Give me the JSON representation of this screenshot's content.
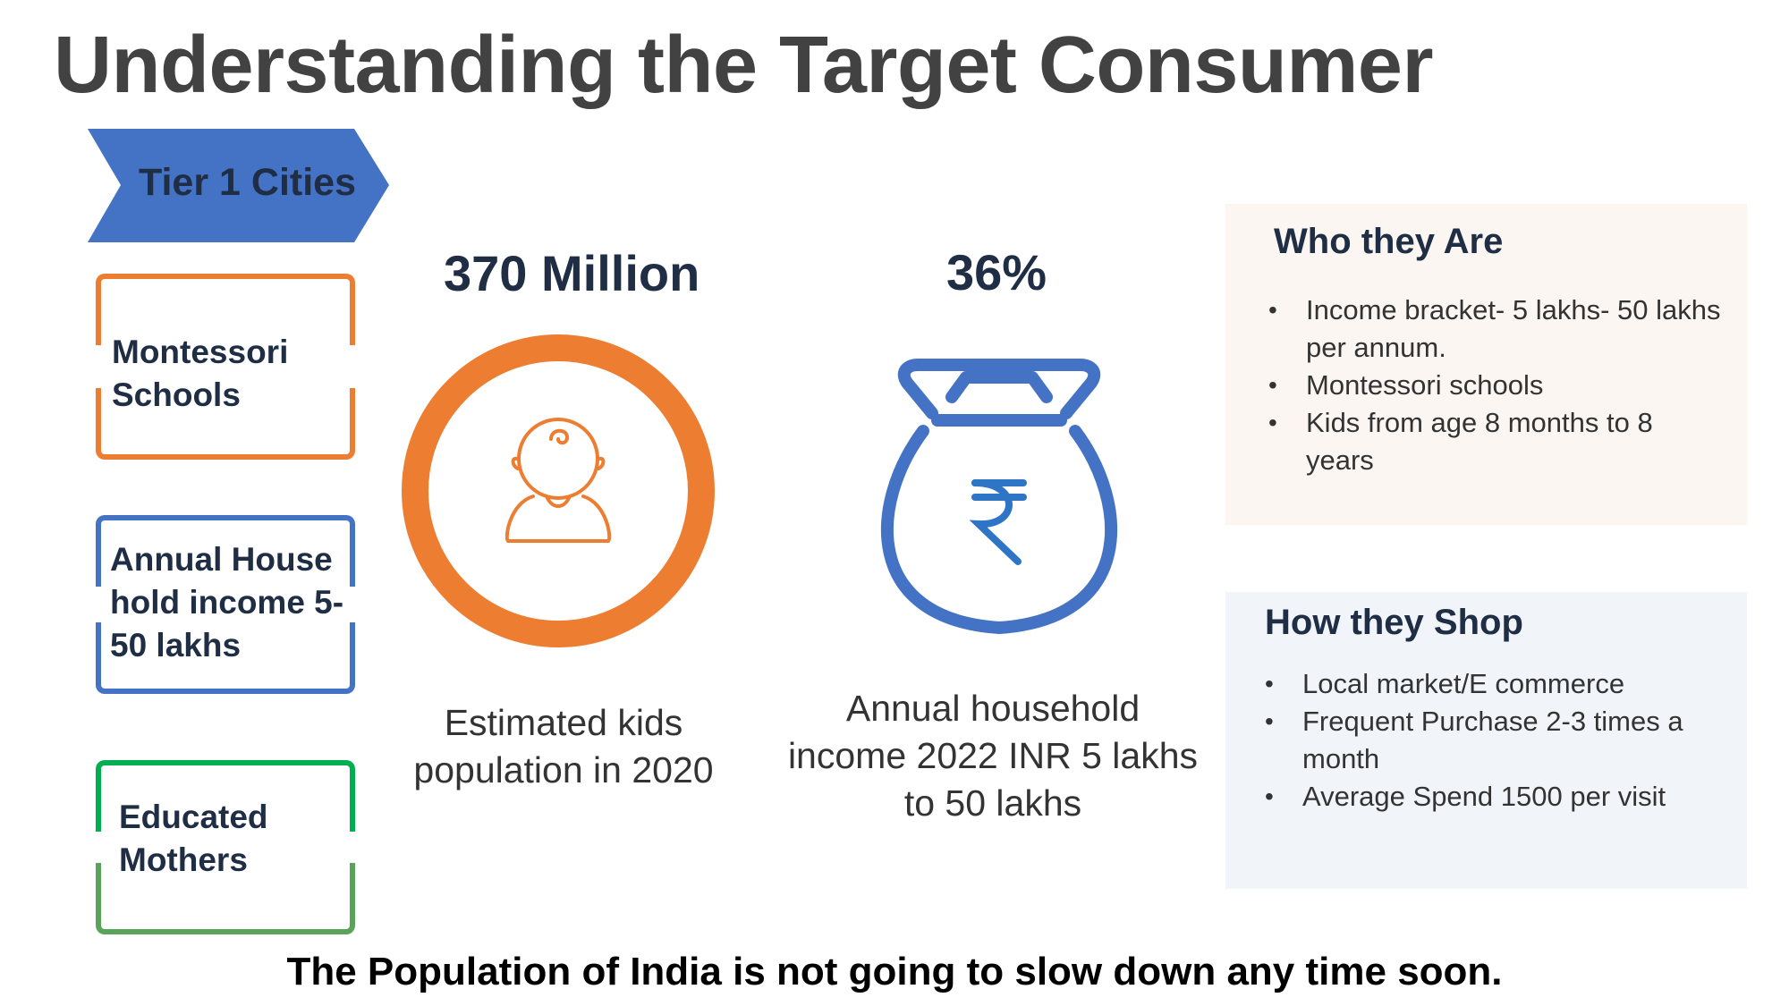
{
  "title": "Understanding the Target Consumer",
  "segment": {
    "label": "Tier 1 Cities",
    "color": "#4472c4"
  },
  "criteria": [
    {
      "label": "Montessori Schools",
      "color": "#ed7d31"
    },
    {
      "label": "Annual House hold income 5-50 lakhs",
      "color": "#4472c4"
    },
    {
      "label": "Educated Mothers",
      "color": "#00b050"
    }
  ],
  "stats": [
    {
      "value": "370 Million",
      "description": "Estimated kids population in 2020",
      "icon": "baby-icon",
      "color": "#ed7d31"
    },
    {
      "value": "36%",
      "description": "Annual household income 2022 INR 5 lakhs to 50 lakhs",
      "icon": "money-bag-icon",
      "color": "#4472c4"
    }
  ],
  "who_they_are": {
    "heading": "Who they Are",
    "items": [
      "Income bracket- 5 lakhs- 50 lakhs per annum.",
      "Montessori schools",
      "Kids from age 8 months to 8 years"
    ]
  },
  "how_they_shop": {
    "heading": "How they Shop",
    "items": [
      "Local market/E commerce",
      "Frequent Purchase 2-3 times a month",
      "Average Spend 1500 per visit"
    ]
  },
  "footer": "The Population of India is not going to slow down any time soon."
}
